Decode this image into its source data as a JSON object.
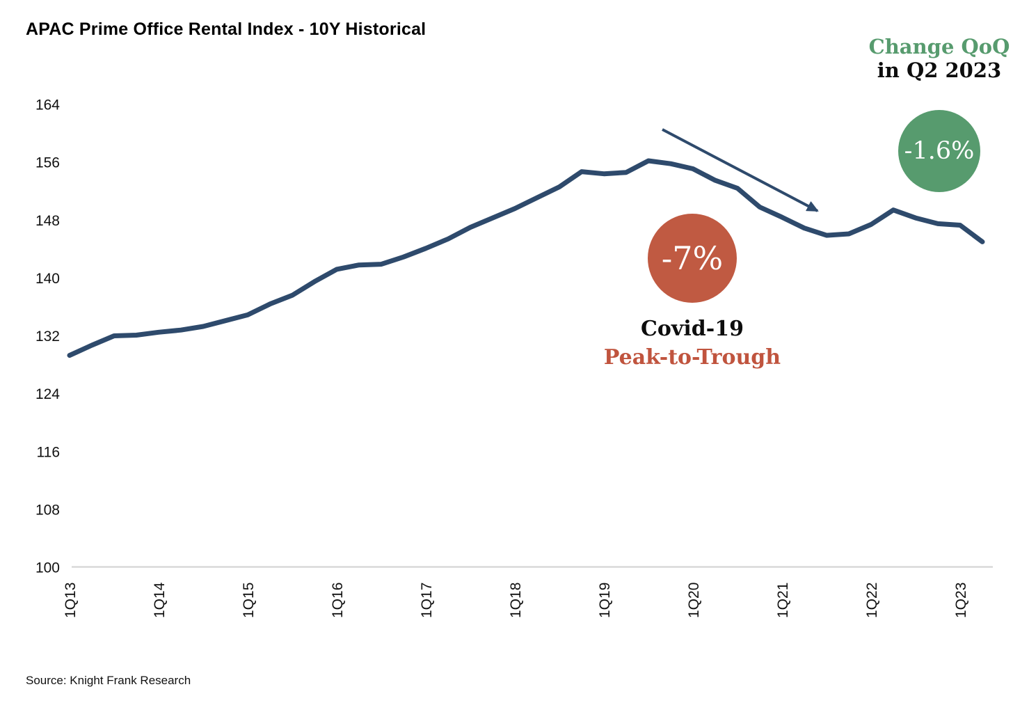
{
  "title": "APAC Prime Office Rental Index - 10Y Historical",
  "source": "Source: Knight Frank Research",
  "annotations": {
    "change_qoq_line1": "Change QoQ",
    "change_qoq_line2": "in Q2 2023",
    "change_qoq_value": "-1.6%",
    "covid_value": "-7%",
    "covid_line1": "Covid-19",
    "covid_line2": "Peak-to-Trough"
  },
  "colors": {
    "line": "#2e4a6c",
    "green": "#579b6e",
    "red": "#c05a42",
    "axis_line": "#d9d9d9",
    "text": "#111111"
  },
  "chart_data": {
    "type": "line",
    "title": "APAC Prime Office Rental Index - 10Y Historical",
    "xlabel": "",
    "ylabel": "",
    "ylim": [
      100,
      164
    ],
    "grid": false,
    "legend": "none",
    "line_color": "#2e4a6c",
    "x": [
      "1Q13",
      "2Q13",
      "3Q13",
      "4Q13",
      "1Q14",
      "2Q14",
      "3Q14",
      "4Q14",
      "1Q15",
      "2Q15",
      "3Q15",
      "4Q15",
      "1Q16",
      "2Q16",
      "3Q16",
      "4Q16",
      "1Q17",
      "2Q17",
      "3Q17",
      "4Q17",
      "1Q18",
      "2Q18",
      "3Q18",
      "4Q18",
      "1Q19",
      "2Q19",
      "3Q19",
      "4Q19",
      "1Q20",
      "2Q20",
      "3Q20",
      "4Q20",
      "1Q21",
      "2Q21",
      "3Q21",
      "4Q21",
      "1Q22",
      "2Q22",
      "3Q22",
      "4Q22",
      "1Q23",
      "2Q23"
    ],
    "values": [
      129.3,
      130.7,
      132.0,
      132.1,
      132.5,
      132.8,
      133.3,
      134.1,
      134.9,
      136.4,
      137.6,
      139.5,
      141.2,
      141.8,
      141.9,
      142.9,
      144.1,
      145.4,
      147.0,
      148.3,
      149.6,
      151.1,
      152.6,
      154.7,
      154.4,
      154.6,
      156.2,
      155.8,
      155.1,
      153.5,
      152.4,
      149.8,
      148.4,
      146.9,
      145.9,
      146.1,
      147.4,
      149.4,
      148.3,
      147.5,
      147.3,
      145.0
    ],
    "x_tick_labels": [
      "1Q13",
      "1Q14",
      "1Q15",
      "1Q16",
      "1Q17",
      "1Q18",
      "1Q19",
      "1Q20",
      "1Q21",
      "1Q22",
      "1Q23"
    ],
    "y_ticks": [
      164,
      156,
      148,
      140,
      132,
      124,
      116,
      108,
      100
    ],
    "annotations_on_chart": [
      "Change QoQ in Q2 2023: -1.6%",
      "Covid-19 Peak-to-Trough: -7%"
    ]
  }
}
